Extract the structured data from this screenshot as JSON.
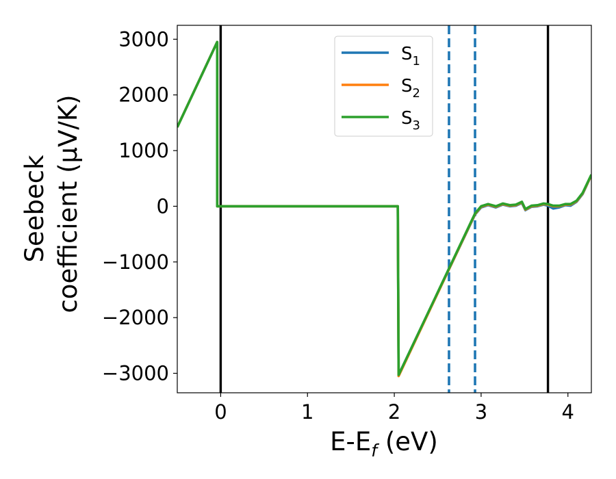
{
  "chart_data": {
    "type": "line",
    "xlabel_main": "E-E",
    "xlabel_sub": "f",
    "xlabel_unit": " (eV)",
    "ylabel_line1": "Seebeck",
    "ylabel_line2": "coefficient  (μV/K)",
    "xlim": [
      -0.5,
      4.27
    ],
    "ylim": [
      -3350,
      3250
    ],
    "x_ticks": [
      0,
      1,
      2,
      3,
      4
    ],
    "x_tick_labels": [
      "0",
      "1",
      "2",
      "3",
      "4"
    ],
    "y_ticks": [
      -3000,
      -2000,
      -1000,
      0,
      1000,
      2000,
      3000
    ],
    "y_tick_labels": [
      "−3000",
      "−2000",
      "−1000",
      "0",
      "1000",
      "2000",
      "3000"
    ],
    "grid": false,
    "legend_position": "top-center",
    "vertical_lines": [
      {
        "x": 0.0,
        "style": "solid",
        "color": "#000000"
      },
      {
        "x": 3.77,
        "style": "solid",
        "color": "#000000"
      },
      {
        "x": 2.63,
        "style": "dashed",
        "color": "#1f77b4"
      },
      {
        "x": 2.93,
        "style": "dashed",
        "color": "#1f77b4"
      }
    ],
    "series": [
      {
        "name_main": "S",
        "name_sub": "1",
        "color": "#1f77b4",
        "points": [
          [
            -0.5,
            1420
          ],
          [
            -0.04,
            2950
          ],
          [
            -0.04,
            0
          ],
          [
            2.04,
            0
          ],
          [
            2.05,
            -3030
          ],
          [
            2.93,
            -150
          ],
          [
            3.0,
            -20
          ],
          [
            3.08,
            20
          ],
          [
            3.17,
            -20
          ],
          [
            3.25,
            30
          ],
          [
            3.33,
            0
          ],
          [
            3.4,
            10
          ],
          [
            3.47,
            60
          ],
          [
            3.51,
            -70
          ],
          [
            3.58,
            -10
          ],
          [
            3.65,
            0
          ],
          [
            3.72,
            30
          ],
          [
            3.77,
            10
          ],
          [
            3.83,
            -40
          ],
          [
            3.9,
            -20
          ],
          [
            3.97,
            20
          ],
          [
            4.03,
            10
          ],
          [
            4.1,
            80
          ],
          [
            4.17,
            220
          ],
          [
            4.27,
            560
          ]
        ]
      },
      {
        "name_main": "S",
        "name_sub": "2",
        "color": "#ff7f0e",
        "points": [
          [
            -0.5,
            1420
          ],
          [
            -0.04,
            2950
          ],
          [
            -0.04,
            0
          ],
          [
            2.04,
            0
          ],
          [
            2.05,
            -3050
          ],
          [
            2.93,
            -140
          ],
          [
            3.0,
            -10
          ],
          [
            3.08,
            30
          ],
          [
            3.17,
            -10
          ],
          [
            3.25,
            40
          ],
          [
            3.33,
            10
          ],
          [
            3.4,
            20
          ],
          [
            3.47,
            70
          ],
          [
            3.51,
            -60
          ],
          [
            3.58,
            0
          ],
          [
            3.65,
            10
          ],
          [
            3.72,
            40
          ],
          [
            3.77,
            30
          ],
          [
            3.83,
            0
          ],
          [
            3.9,
            0
          ],
          [
            3.97,
            30
          ],
          [
            4.03,
            30
          ],
          [
            4.1,
            90
          ],
          [
            4.17,
            230
          ],
          [
            4.27,
            560
          ]
        ]
      },
      {
        "name_main": "S",
        "name_sub": "3",
        "color": "#2ca02c",
        "points": [
          [
            -0.5,
            1420
          ],
          [
            -0.04,
            2950
          ],
          [
            -0.04,
            0
          ],
          [
            2.04,
            0
          ],
          [
            2.05,
            -3030
          ],
          [
            2.93,
            -130
          ],
          [
            3.0,
            0
          ],
          [
            3.08,
            40
          ],
          [
            3.17,
            0
          ],
          [
            3.25,
            50
          ],
          [
            3.33,
            20
          ],
          [
            3.4,
            30
          ],
          [
            3.47,
            80
          ],
          [
            3.51,
            -50
          ],
          [
            3.58,
            10
          ],
          [
            3.65,
            20
          ],
          [
            3.72,
            50
          ],
          [
            3.77,
            40
          ],
          [
            3.83,
            10
          ],
          [
            3.9,
            10
          ],
          [
            3.97,
            40
          ],
          [
            4.03,
            40
          ],
          [
            4.1,
            100
          ],
          [
            4.17,
            240
          ],
          [
            4.27,
            570
          ]
        ]
      }
    ]
  }
}
